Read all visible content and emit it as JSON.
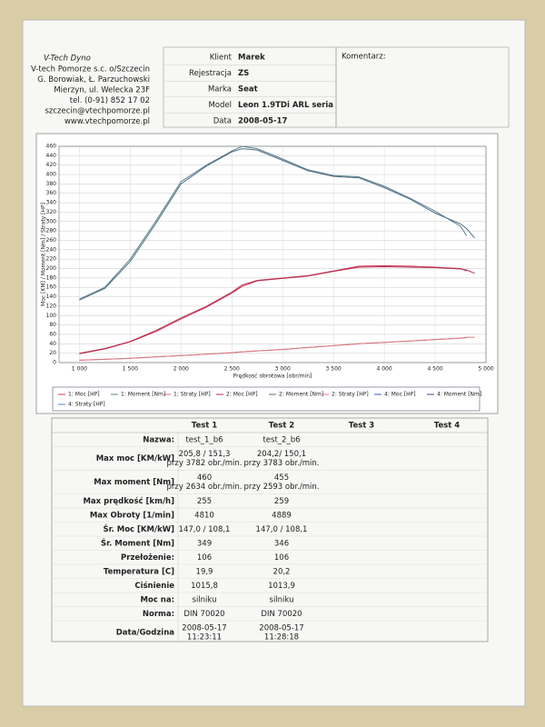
{
  "company": {
    "title": "V-Tech Dyno",
    "lines": [
      "V-tech Pomorze s.c. o/Szczecin",
      "G. Borowiak, Ł. Parzuchowski",
      "Mierzyn, ul. Welecka 23F",
      "tel. (0-91) 852 17 02",
      "szczecin@vtechpomorze.pl",
      "www.vtechpomorze.pl"
    ]
  },
  "client": [
    {
      "label": "Klient",
      "value": "Marek"
    },
    {
      "label": "Rejestracja",
      "value": "ZS"
    },
    {
      "label": "Marka",
      "value": "Seat"
    },
    {
      "label": "Model",
      "value": "Leon 1.9TDi ARL seria"
    },
    {
      "label": "Data",
      "value": "2008-05-17"
    }
  ],
  "comment_label": "Komentarz:",
  "chart_data": {
    "type": "line",
    "y_label": "Moc [KM] / Moment [Nm] / Straty [HP]",
    "x_label": "Prędkość obrotowa [obr/min]",
    "x": [
      1000,
      1250,
      1500,
      1750,
      2000,
      2250,
      2500,
      2600,
      2750,
      3000,
      3250,
      3500,
      3750,
      4000,
      4250,
      4500,
      4750,
      4810,
      4889
    ],
    "xlim": [
      800,
      5000
    ],
    "xticks": [
      {
        "value": 1000,
        "label": "1 000"
      },
      {
        "value": 1500,
        "label": "1 500"
      },
      {
        "value": 2000,
        "label": "2 000"
      },
      {
        "value": 2500,
        "label": "2 500"
      },
      {
        "value": 3000,
        "label": "3 000"
      },
      {
        "value": 3500,
        "label": "3 500"
      },
      {
        "value": 4000,
        "label": "4 000"
      },
      {
        "value": 4500,
        "label": "4 500"
      },
      {
        "value": 5000,
        "label": "5 000"
      }
    ],
    "ylim": [
      0,
      460
    ],
    "yticks": [
      0,
      20,
      40,
      60,
      80,
      100,
      120,
      140,
      160,
      180,
      200,
      220,
      240,
      260,
      280,
      300,
      320,
      340,
      360,
      380,
      400,
      420,
      440,
      460
    ],
    "grid": true,
    "series": [
      {
        "name": "1: Moc [HP]",
        "color": "#c8405c",
        "values": [
          20,
          30,
          45,
          68,
          95,
          120,
          150,
          165,
          175,
          180,
          185,
          195,
          205,
          206,
          205,
          203,
          200,
          195,
          null
        ]
      },
      {
        "name": "1: Moment [Nm]",
        "color": "#5a7f8c",
        "values": [
          135,
          160,
          220,
          300,
          385,
          420,
          450,
          460,
          455,
          433,
          410,
          398,
          395,
          375,
          350,
          322,
          290,
          270,
          null
        ]
      },
      {
        "name": "1: Straty [HP]",
        "color": "#d06a78",
        "values": [
          5,
          7,
          9,
          12,
          15,
          18,
          21,
          23,
          25,
          28,
          32,
          36,
          40,
          43,
          46,
          49,
          52,
          53,
          null
        ]
      },
      {
        "name": "2: Moc [HP]",
        "color": "#b83050",
        "values": [
          19,
          29,
          44,
          66,
          93,
          118,
          148,
          162,
          174,
          179,
          184,
          194,
          203,
          204,
          203,
          202,
          199,
          197,
          190
        ]
      },
      {
        "name": "2: Moment [Nm]",
        "color": "#4f7080",
        "values": [
          133,
          158,
          215,
          295,
          380,
          418,
          448,
          455,
          452,
          430,
          408,
          396,
          393,
          372,
          348,
          318,
          295,
          285,
          265
        ]
      },
      {
        "name": "2: Straty [HP]",
        "color": "#d87a85",
        "values": [
          5,
          7,
          9,
          12,
          15,
          18,
          21,
          23,
          25,
          28,
          32,
          36,
          40,
          43,
          46,
          49,
          52,
          54,
          54
        ]
      },
      {
        "name": "4: Moc [HP]",
        "color": "#3a5fb0",
        "values": [
          null,
          null,
          null,
          null,
          null,
          null,
          null,
          null,
          null,
          null,
          null,
          null,
          null,
          null,
          null,
          null,
          null,
          null,
          null
        ]
      },
      {
        "name": "4: Moment [Nm]",
        "color": "#2f4f9a",
        "values": [
          null,
          null,
          null,
          null,
          null,
          null,
          null,
          null,
          null,
          null,
          null,
          null,
          null,
          null,
          null,
          null,
          null,
          null,
          null
        ]
      },
      {
        "name": "4: Straty [HP]",
        "color": "#6080c0",
        "values": [
          null,
          null,
          null,
          null,
          null,
          null,
          null,
          null,
          null,
          null,
          null,
          null,
          null,
          null,
          null,
          null,
          null,
          null,
          null
        ]
      }
    ]
  },
  "table": {
    "columns": [
      "Test 1",
      "Test 2",
      "Test 3",
      "Test 4"
    ],
    "rows": [
      {
        "label": "Nazwa:",
        "cells": [
          [
            "test_1_b6"
          ],
          [
            "test_2_b6"
          ]
        ]
      },
      {
        "label": "Max moc [KM/kW]",
        "cells": [
          [
            "205,8 / 151,3",
            "przy 3782 obr./min."
          ],
          [
            "204,2/ 150,1",
            "przy 3783 obr./min."
          ]
        ]
      },
      {
        "label": "Max moment [Nm]",
        "cells": [
          [
            "460",
            "przy 2634 obr./min."
          ],
          [
            "455",
            "przy 2593 obr./min."
          ]
        ]
      },
      {
        "label": "Max prędkość [km/h]",
        "cells": [
          [
            "255"
          ],
          [
            "259"
          ]
        ]
      },
      {
        "label": "Max Obroty [1/min]",
        "cells": [
          [
            "4810"
          ],
          [
            "4889"
          ]
        ]
      },
      {
        "label": "Śr. Moc [KM/kW]",
        "cells": [
          [
            "147,0 / 108,1"
          ],
          [
            "147,0 / 108,1"
          ]
        ]
      },
      {
        "label": "Śr. Moment [Nm]",
        "cells": [
          [
            "349"
          ],
          [
            "346"
          ]
        ]
      },
      {
        "label": "Przełożenie:",
        "cells": [
          [
            "106"
          ],
          [
            "106"
          ]
        ]
      },
      {
        "label": "Temperatura [C]",
        "cells": [
          [
            "19,9"
          ],
          [
            "20,2"
          ]
        ]
      },
      {
        "label": "Ciśnienie",
        "cells": [
          [
            "1015,8"
          ],
          [
            "1013,9"
          ]
        ]
      },
      {
        "label": "Moc na:",
        "cells": [
          [
            "silniku"
          ],
          [
            "silniku"
          ]
        ]
      },
      {
        "label": "Norma:",
        "cells": [
          [
            "DIN 70020"
          ],
          [
            "DIN 70020"
          ]
        ]
      },
      {
        "label": "Data/Godzina",
        "cells": [
          [
            "2008-05-17",
            "11:23:11"
          ],
          [
            "2008-05-17",
            "11:28:18"
          ]
        ]
      }
    ]
  }
}
